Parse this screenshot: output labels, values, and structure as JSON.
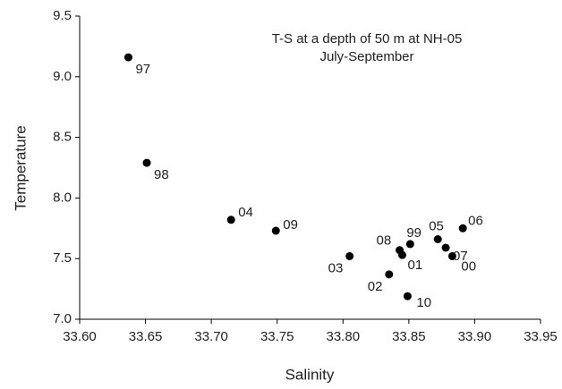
{
  "chart_data": {
    "type": "scatter",
    "title": "T-S at a depth of 50 m at NH-05",
    "subtitle": "July-September",
    "x_label": "Salinity",
    "y_label": "Temperature",
    "x": [
      33.637,
      33.651,
      33.715,
      33.749,
      33.805,
      33.835,
      33.843,
      33.845,
      33.851,
      33.849,
      33.872,
      33.878,
      33.883,
      33.891
    ],
    "values": [
      9.16,
      8.29,
      7.82,
      7.73,
      7.52,
      7.37,
      7.57,
      7.53,
      7.62,
      7.19,
      7.66,
      7.59,
      7.52,
      7.75
    ],
    "labels": [
      "97",
      "98",
      "04",
      "09",
      "03",
      "02",
      "08",
      "01",
      "99",
      "10",
      "05",
      "07",
      "00",
      "06"
    ],
    "color": "#000000",
    "xlim": [
      33.6,
      33.95
    ],
    "ylim": [
      7.0,
      9.5
    ],
    "xticks": [
      {
        "value": 33.6,
        "label": "33.60"
      },
      {
        "value": 33.65,
        "label": "33.65"
      },
      {
        "value": 33.7,
        "label": "33.70"
      },
      {
        "value": 33.75,
        "label": "33.75"
      },
      {
        "value": 33.8,
        "label": "33.80"
      },
      {
        "value": 33.85,
        "label": "33.85"
      },
      {
        "value": 33.9,
        "label": "33.90"
      },
      {
        "value": 33.95,
        "label": "33.95"
      }
    ],
    "yticks": [
      {
        "value": 7.0,
        "label": "7.0"
      },
      7.5,
      {
        "value": 8.0,
        "label": "8.0"
      },
      8.5,
      {
        "value": 9.0,
        "label": "9.0"
      },
      9.5
    ]
  }
}
